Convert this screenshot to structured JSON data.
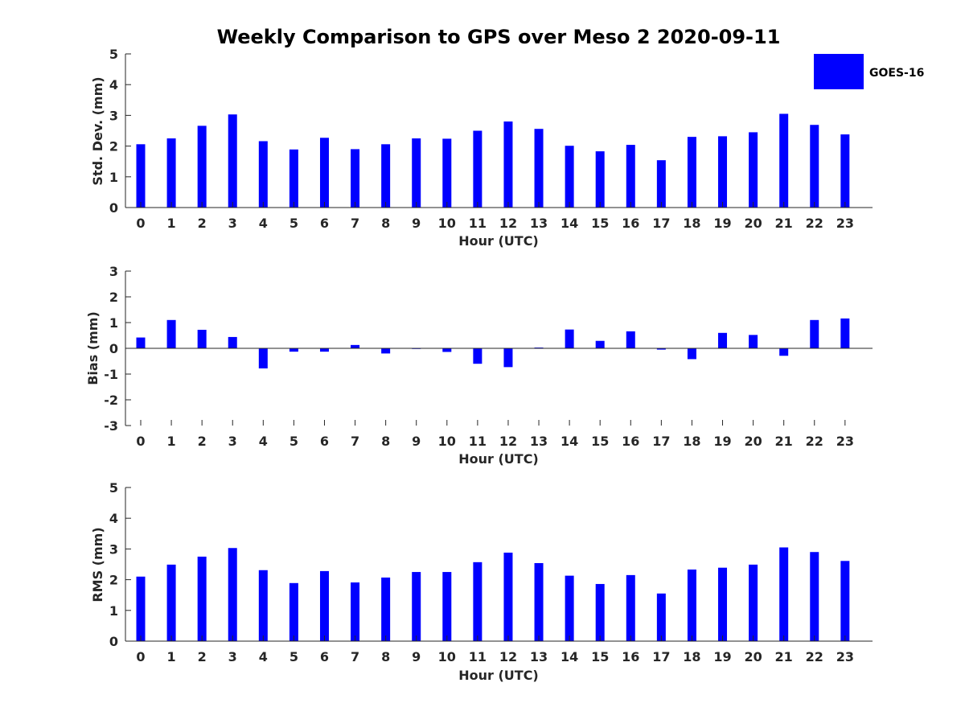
{
  "title": "Weekly Comparison to GPS over Meso 2 2020-09-11",
  "legend": {
    "label": "GOES-16",
    "color": "#0000ff"
  },
  "chart_data": [
    {
      "type": "bar",
      "name": "std-dev",
      "xlabel": "Hour (UTC)",
      "ylabel": "Std. Dev. (mm)",
      "ylim": [
        0,
        5
      ],
      "yticks": [
        0,
        1,
        2,
        3,
        4,
        5
      ],
      "categories": [
        "0",
        "1",
        "2",
        "3",
        "4",
        "5",
        "6",
        "7",
        "8",
        "9",
        "10",
        "11",
        "12",
        "13",
        "14",
        "15",
        "16",
        "17",
        "18",
        "19",
        "20",
        "21",
        "22",
        "23"
      ],
      "series": [
        {
          "name": "GOES-16",
          "values": [
            2.06,
            2.25,
            2.66,
            3.03,
            2.16,
            1.89,
            2.27,
            1.9,
            2.06,
            2.25,
            2.24,
            2.5,
            2.8,
            2.56,
            2.01,
            1.83,
            2.04,
            1.54,
            2.3,
            2.32,
            2.45,
            3.05,
            2.69,
            2.38
          ]
        }
      ]
    },
    {
      "type": "bar",
      "name": "bias",
      "xlabel": "Hour (UTC)",
      "ylabel": "Bias (mm)",
      "ylim": [
        -3,
        3
      ],
      "yticks": [
        -3,
        -2,
        -1,
        0,
        1,
        2,
        3
      ],
      "categories": [
        "0",
        "1",
        "2",
        "3",
        "4",
        "5",
        "6",
        "7",
        "8",
        "9",
        "10",
        "11",
        "12",
        "13",
        "14",
        "15",
        "16",
        "17",
        "18",
        "19",
        "20",
        "21",
        "22",
        "23"
      ],
      "series": [
        {
          "name": "GOES-16",
          "values": [
            0.42,
            1.1,
            0.72,
            0.44,
            -0.78,
            -0.13,
            -0.13,
            0.13,
            -0.2,
            -0.01,
            -0.14,
            -0.6,
            -0.73,
            0.03,
            0.73,
            0.29,
            0.66,
            -0.05,
            -0.42,
            0.6,
            0.52,
            -0.29,
            1.1,
            1.16
          ]
        }
      ]
    },
    {
      "type": "bar",
      "name": "rms",
      "xlabel": "Hour (UTC)",
      "ylabel": "RMS (mm)",
      "ylim": [
        0,
        5
      ],
      "yticks": [
        0,
        1,
        2,
        3,
        4,
        5
      ],
      "categories": [
        "0",
        "1",
        "2",
        "3",
        "4",
        "5",
        "6",
        "7",
        "8",
        "9",
        "10",
        "11",
        "12",
        "13",
        "14",
        "15",
        "16",
        "17",
        "18",
        "19",
        "20",
        "21",
        "22",
        "23"
      ],
      "series": [
        {
          "name": "GOES-16",
          "values": [
            2.1,
            2.49,
            2.75,
            3.03,
            2.31,
            1.89,
            2.28,
            1.91,
            2.07,
            2.25,
            2.25,
            2.57,
            2.88,
            2.54,
            2.13,
            1.86,
            2.15,
            1.55,
            2.33,
            2.39,
            2.49,
            3.05,
            2.9,
            2.61
          ]
        }
      ]
    }
  ]
}
